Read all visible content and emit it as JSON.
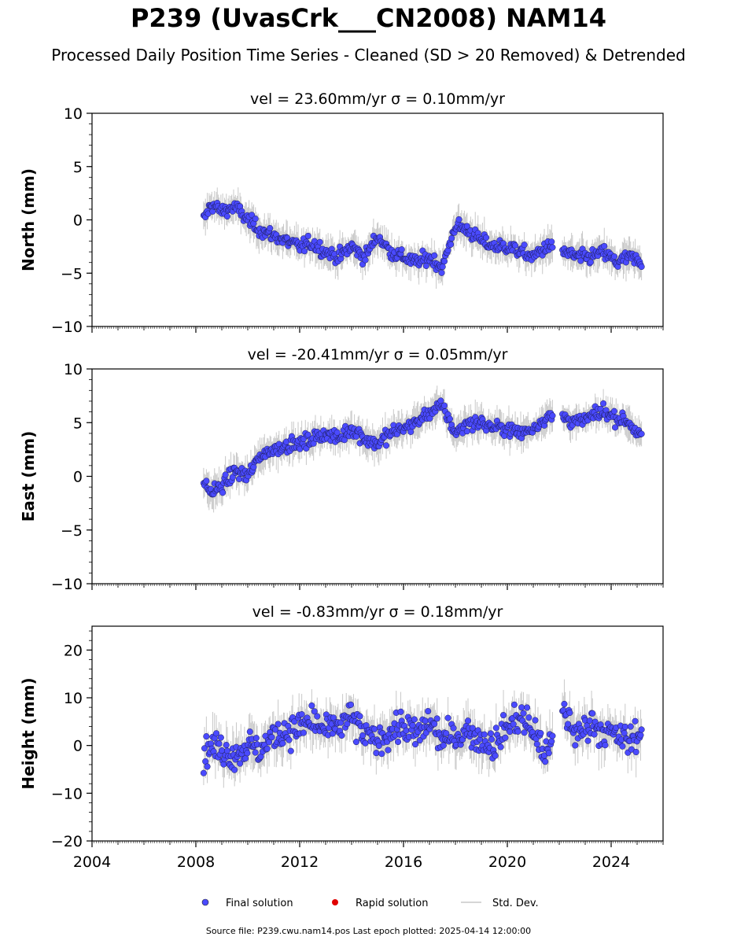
{
  "title": "P239 (UvasCrk___CN2008) NAM14",
  "subtitle": "Processed Daily Position Time Series - Cleaned (SD > 20 Removed) & Detrended",
  "source_text": "Source file: P239.cwu.nam14.pos  Last epoch plotted: 2025-04-14 12:00:00",
  "colors": {
    "final": "#4a4aff",
    "rapid": "#e00000",
    "stddev": "#c8c8c8"
  },
  "chart_data": [
    {
      "type": "scatter",
      "title": "vel = 23.60mm/yr   σ = 0.10mm/yr",
      "ylabel": "North (mm)",
      "xlim": [
        2004,
        2026
      ],
      "ylim": [
        -10,
        10
      ],
      "yticks": [
        -10,
        -5,
        0,
        5,
        10
      ],
      "ytick_labels": [
        "−10",
        "−5",
        "0",
        "5",
        "10"
      ],
      "series": [
        {
          "name": "Final solution",
          "x": [
            2008.3,
            2008.6,
            2009.0,
            2009.5,
            2010.0,
            2010.5,
            2011.0,
            2011.5,
            2012.0,
            2012.5,
            2013.0,
            2013.5,
            2014.0,
            2014.5,
            2015.0,
            2015.5,
            2016.0,
            2016.5,
            2017.0,
            2017.5,
            2018.0,
            2018.5,
            2019.0,
            2019.5,
            2020.0,
            2020.5,
            2021.0,
            2021.5,
            2022.2,
            2022.7,
            2023.2,
            2023.7,
            2024.2,
            2024.7,
            2025.2
          ],
          "y": [
            0.0,
            1.5,
            0.8,
            1.2,
            0.0,
            -1.0,
            -1.5,
            -2.0,
            -2.5,
            -2.2,
            -3.0,
            -3.5,
            -2.5,
            -3.5,
            -1.5,
            -3.0,
            -3.5,
            -4.0,
            -3.5,
            -4.5,
            -0.5,
            -1.0,
            -2.0,
            -2.5,
            -2.5,
            -3.0,
            -3.5,
            -2.5,
            -3.0,
            -3.5,
            -3.5,
            -3.0,
            -4.0,
            -3.5,
            -4.0
          ]
        },
        {
          "name": "Rapid solution",
          "x": [],
          "y": []
        }
      ]
    },
    {
      "type": "scatter",
      "title": "vel = -20.41mm/yr   σ = 0.05mm/yr",
      "ylabel": "East (mm)",
      "xlim": [
        2004,
        2026
      ],
      "ylim": [
        -10,
        10
      ],
      "yticks": [
        -10,
        -5,
        0,
        5,
        10
      ],
      "ytick_labels": [
        "−10",
        "−5",
        "0",
        "5",
        "10"
      ],
      "series": [
        {
          "name": "Final solution",
          "x": [
            2008.3,
            2008.6,
            2009.0,
            2009.5,
            2010.0,
            2010.5,
            2011.0,
            2011.5,
            2012.0,
            2012.5,
            2013.0,
            2013.5,
            2014.0,
            2014.5,
            2015.0,
            2015.5,
            2016.0,
            2016.5,
            2017.0,
            2017.5,
            2018.0,
            2018.5,
            2019.0,
            2019.5,
            2020.0,
            2020.5,
            2021.0,
            2021.5,
            2022.2,
            2022.7,
            2023.2,
            2023.7,
            2024.2,
            2024.7,
            2025.2
          ],
          "y": [
            -0.5,
            -1.5,
            -1.0,
            0.5,
            0.0,
            2.0,
            2.5,
            3.0,
            3.0,
            3.5,
            4.0,
            3.5,
            4.5,
            3.5,
            3.0,
            4.0,
            4.5,
            5.0,
            6.0,
            6.5,
            4.0,
            5.0,
            5.0,
            4.5,
            4.5,
            4.0,
            4.5,
            5.5,
            5.5,
            5.0,
            5.5,
            6.0,
            5.5,
            5.0,
            3.5
          ]
        },
        {
          "name": "Rapid solution",
          "x": [],
          "y": []
        }
      ]
    },
    {
      "type": "scatter",
      "title": "vel = -0.83mm/yr   σ = 0.18mm/yr",
      "ylabel": "Height (mm)",
      "xlim": [
        2004,
        2026
      ],
      "ylim": [
        -20,
        25
      ],
      "yticks": [
        -20,
        -10,
        0,
        10,
        20
      ],
      "ytick_labels": [
        "−20",
        "−10",
        "0",
        "10",
        "20"
      ],
      "xticks": [
        2004,
        2008,
        2012,
        2016,
        2020,
        2024
      ],
      "xtick_labels": [
        "2004",
        "2008",
        "2012",
        "2016",
        "2020",
        "2024"
      ],
      "series": [
        {
          "name": "Final solution",
          "x": [
            2008.3,
            2008.6,
            2009.0,
            2009.5,
            2010.0,
            2010.5,
            2011.0,
            2011.5,
            2012.0,
            2012.5,
            2013.0,
            2013.5,
            2014.0,
            2014.5,
            2015.0,
            2015.5,
            2016.0,
            2016.5,
            2017.0,
            2017.5,
            2018.0,
            2018.5,
            2019.0,
            2019.5,
            2020.0,
            2020.5,
            2021.0,
            2021.5,
            2022.2,
            2022.7,
            2023.2,
            2023.7,
            2024.2,
            2024.7,
            2025.2
          ],
          "y": [
            -2,
            0,
            -1,
            -2,
            0,
            -1,
            2,
            3,
            4,
            5,
            3,
            4,
            6,
            2,
            1,
            3,
            4,
            2,
            5,
            1,
            2,
            3,
            1,
            0,
            4,
            6,
            3,
            -2,
            7,
            2,
            5,
            3,
            2,
            1,
            3
          ]
        },
        {
          "name": "Rapid solution",
          "x": [],
          "y": []
        }
      ]
    }
  ],
  "legend": {
    "final_label": "Final solution",
    "rapid_label": "Rapid solution",
    "stddev_label": "Std. Dev."
  }
}
